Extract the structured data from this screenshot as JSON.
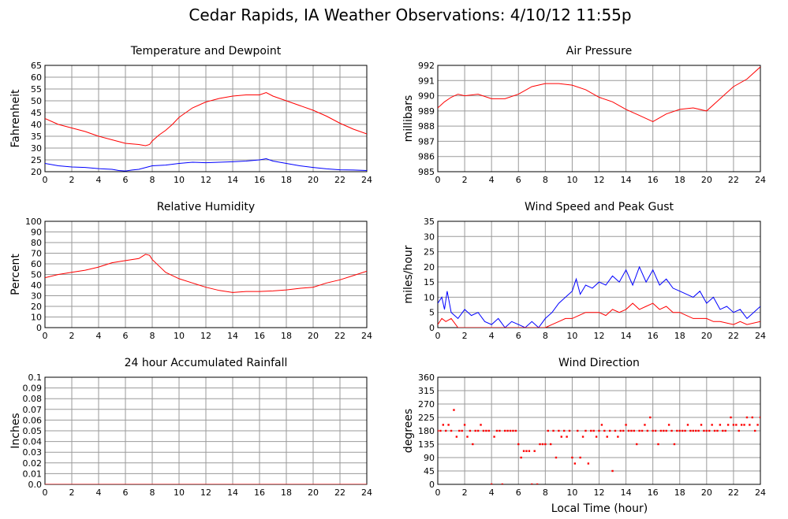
{
  "title": "Cedar Rapids, IA Weather Observations: 4/10/12 11:55p",
  "xlabel_shared": "Local Time (hour)",
  "colors": {
    "red": "#ff0000",
    "blue": "#0000ff",
    "grid": "#9a9a9a"
  },
  "chart_data": [
    {
      "type": "line",
      "title": "Temperature and Dewpoint",
      "ylabel": "Fahrenheit",
      "xlabel": "",
      "xlim": [
        0,
        24
      ],
      "ylim": [
        20,
        65
      ],
      "x_ticks": [
        0,
        2,
        4,
        6,
        8,
        10,
        12,
        14,
        16,
        18,
        20,
        22,
        24
      ],
      "y_ticks": [
        20,
        25,
        30,
        35,
        40,
        45,
        50,
        55,
        60,
        65
      ],
      "grid": true,
      "series": [
        {
          "color": "#ff0000",
          "x": [
            0,
            1,
            2,
            3,
            4,
            5,
            6,
            7,
            7.5,
            7.8,
            8,
            8.5,
            9,
            9.5,
            10,
            10.5,
            11,
            12,
            13,
            14,
            15,
            16,
            16.5,
            17,
            18,
            19,
            20,
            21,
            22,
            23,
            24
          ],
          "y": [
            42.5,
            40,
            38.5,
            37,
            35,
            33.5,
            32,
            31.5,
            31,
            31.5,
            33,
            35.5,
            37.5,
            40,
            43,
            45,
            47,
            49.5,
            51,
            52,
            52.5,
            52.5,
            53.5,
            52,
            50,
            48,
            46,
            43.5,
            40.5,
            38,
            36
          ]
        },
        {
          "color": "#0000ff",
          "x": [
            0,
            1,
            2,
            3,
            4,
            5,
            5.5,
            6,
            6.5,
            7,
            8,
            9,
            10,
            11,
            12,
            13,
            14,
            15,
            16,
            16.5,
            17,
            18,
            19,
            20,
            21,
            22,
            23,
            24
          ],
          "y": [
            23.5,
            22.5,
            22,
            21.8,
            21.3,
            21,
            20.5,
            20.3,
            20.7,
            21,
            22.5,
            22.8,
            23.5,
            24,
            23.8,
            24,
            24.2,
            24.5,
            25,
            25.5,
            24.5,
            23.5,
            22.5,
            21.8,
            21.2,
            20.8,
            20.7,
            20.5
          ]
        }
      ]
    },
    {
      "type": "line",
      "title": "Air Pressure",
      "ylabel": "millibars",
      "xlabel": "",
      "xlim": [
        0,
        24
      ],
      "ylim": [
        985,
        992
      ],
      "x_ticks": [
        0,
        2,
        4,
        6,
        8,
        10,
        12,
        14,
        16,
        18,
        20,
        22,
        24
      ],
      "y_ticks": [
        985,
        986,
        987,
        988,
        989,
        990,
        991,
        992
      ],
      "grid": true,
      "series": [
        {
          "color": "#ff0000",
          "x": [
            0,
            0.5,
            1,
            1.5,
            2,
            3,
            4,
            5,
            6,
            7,
            8,
            9,
            10,
            11,
            12,
            13,
            14,
            15,
            16,
            17,
            18,
            19,
            20,
            21,
            22,
            23,
            24
          ],
          "y": [
            989.2,
            989.6,
            989.9,
            990.1,
            990,
            990.1,
            989.8,
            989.8,
            990.1,
            990.6,
            990.8,
            990.8,
            990.7,
            990.4,
            989.9,
            989.6,
            989.1,
            988.7,
            988.3,
            988.8,
            989.1,
            989.2,
            989,
            989.8,
            990.6,
            991.1,
            991.9
          ]
        }
      ]
    },
    {
      "type": "line",
      "title": "Relative Humidity",
      "ylabel": "Percent",
      "xlabel": "",
      "xlim": [
        0,
        24
      ],
      "ylim": [
        0,
        100
      ],
      "x_ticks": [
        0,
        2,
        4,
        6,
        8,
        10,
        12,
        14,
        16,
        18,
        20,
        22,
        24
      ],
      "y_ticks": [
        0,
        10,
        20,
        30,
        40,
        50,
        60,
        70,
        80,
        90,
        100
      ],
      "grid": true,
      "series": [
        {
          "color": "#ff0000",
          "x": [
            0,
            1,
            2,
            3,
            4,
            5,
            6,
            7,
            7.5,
            7.8,
            8,
            8.5,
            9,
            10,
            11,
            12,
            13,
            14,
            15,
            16,
            17,
            18,
            19,
            20,
            21,
            22,
            23,
            24
          ],
          "y": [
            47,
            50,
            52,
            54,
            57,
            61,
            63,
            65,
            69,
            68,
            64,
            58,
            52,
            46,
            42,
            38,
            35,
            33,
            34,
            34,
            34.5,
            35.5,
            37,
            38,
            42,
            45,
            49,
            53
          ]
        }
      ]
    },
    {
      "type": "line",
      "title": "Wind Speed and Peak Gust",
      "ylabel": "miles/hour",
      "xlabel": "",
      "xlim": [
        0,
        24
      ],
      "ylim": [
        0,
        35
      ],
      "x_ticks": [
        0,
        2,
        4,
        6,
        8,
        10,
        12,
        14,
        16,
        18,
        20,
        22,
        24
      ],
      "y_ticks": [
        0,
        5,
        10,
        15,
        20,
        25,
        30,
        35
      ],
      "grid": true,
      "series": [
        {
          "color": "#0000ff",
          "x": [
            0,
            0.3,
            0.5,
            0.7,
            1,
            1.5,
            2,
            2.5,
            3,
            3.5,
            4,
            4.5,
            5,
            5.5,
            6,
            6.5,
            7,
            7.5,
            8,
            8.5,
            9,
            9.5,
            10,
            10.3,
            10.6,
            11,
            11.5,
            12,
            12.5,
            13,
            13.5,
            14,
            14.5,
            15,
            15.5,
            16,
            16.5,
            17,
            17.5,
            18,
            18.5,
            19,
            19.5,
            20,
            20.5,
            21,
            21.5,
            22,
            22.5,
            23,
            23.5,
            24
          ],
          "y": [
            8,
            10,
            6,
            12,
            5,
            3,
            6,
            4,
            5,
            2,
            1,
            3,
            0,
            2,
            1,
            0,
            2,
            0,
            3,
            5,
            8,
            10,
            12,
            16,
            11,
            14,
            13,
            15,
            14,
            17,
            15,
            19,
            14,
            20,
            15,
            19,
            14,
            16,
            13,
            12,
            11,
            10,
            12,
            8,
            10,
            6,
            7,
            5,
            6,
            3,
            5,
            7
          ]
        },
        {
          "color": "#ff0000",
          "x": [
            0,
            0.3,
            0.6,
            1,
            1.5,
            2,
            3,
            4,
            5,
            6,
            7,
            8,
            8.5,
            9,
            9.5,
            10,
            10.5,
            11,
            12,
            12.5,
            13,
            13.5,
            14,
            14.5,
            15,
            15.5,
            16,
            16.5,
            17,
            17.5,
            18,
            18.5,
            19,
            20,
            20.5,
            21,
            22,
            22.5,
            23,
            24
          ],
          "y": [
            1,
            3,
            2,
            3,
            0,
            0,
            0,
            0,
            0,
            0,
            0,
            0,
            1,
            2,
            3,
            3,
            4,
            5,
            5,
            4,
            6,
            5,
            6,
            8,
            6,
            7,
            8,
            6,
            7,
            5,
            5,
            4,
            3,
            3,
            2,
            2,
            1,
            2,
            1,
            2
          ]
        }
      ]
    },
    {
      "type": "line",
      "title": "24 hour Accumulated Rainfall",
      "ylabel": "Inches",
      "xlabel": "",
      "xlim": [
        0,
        24
      ],
      "ylim": [
        0,
        0.1
      ],
      "x_ticks": [
        0,
        2,
        4,
        6,
        8,
        10,
        12,
        14,
        16,
        18,
        20,
        22,
        24
      ],
      "y_ticks": [
        "0.0",
        "0.01",
        "0.02",
        "0.03",
        "0.04",
        "0.05",
        "0.06",
        "0.07",
        "0.08",
        "0.09",
        "0.1"
      ],
      "grid": true,
      "series": [
        {
          "color": "#ff0000",
          "x": [
            0,
            24
          ],
          "y": [
            0,
            0
          ]
        }
      ]
    },
    {
      "type": "scatter",
      "title": "Wind Direction",
      "ylabel": "degrees",
      "xlabel": "Local Time (hour)",
      "xlim": [
        0,
        24
      ],
      "ylim": [
        0,
        360
      ],
      "x_ticks": [
        0,
        2,
        4,
        6,
        8,
        10,
        12,
        14,
        16,
        18,
        20,
        22,
        24
      ],
      "y_ticks": [
        0,
        45,
        90,
        135,
        180,
        225,
        270,
        315,
        360
      ],
      "grid": true,
      "series": [
        {
          "color": "#ff0000",
          "x": [
            0,
            0.2,
            0.4,
            0.6,
            0.8,
            1,
            1.2,
            1.4,
            1.6,
            1.8,
            2,
            2.2,
            2.4,
            2.6,
            2.8,
            3,
            3.2,
            3.4,
            3.6,
            3.8,
            4,
            4.2,
            4.4,
            4.6,
            4.8,
            5,
            5.2,
            5.4,
            5.6,
            5.8,
            6,
            6.2,
            6.4,
            6.6,
            6.8,
            7,
            7.2,
            7.4,
            7.6,
            7.8,
            8,
            8.2,
            8.4,
            8.6,
            8.8,
            9,
            9.2,
            9.4,
            9.6,
            9.8,
            10,
            10.2,
            10.4,
            10.6,
            10.8,
            11,
            11.2,
            11.4,
            11.6,
            11.8,
            12,
            12.2,
            12.4,
            12.6,
            12.8,
            13,
            13.2,
            13.4,
            13.6,
            13.8,
            14,
            14.2,
            14.4,
            14.6,
            14.8,
            15,
            15.2,
            15.4,
            15.6,
            15.8,
            16,
            16.2,
            16.4,
            16.6,
            16.8,
            17,
            17.2,
            17.4,
            17.6,
            17.8,
            18,
            18.2,
            18.4,
            18.6,
            18.8,
            19,
            19.2,
            19.4,
            19.6,
            19.8,
            20,
            20.2,
            20.4,
            20.6,
            20.8,
            21,
            21.2,
            21.4,
            21.6,
            21.8,
            22,
            22.2,
            22.4,
            22.6,
            22.8,
            23,
            23.2,
            23.4,
            23.6,
            23.8,
            24
          ],
          "y": [
            180,
            180,
            200,
            180,
            200,
            180,
            250,
            160,
            180,
            180,
            200,
            160,
            180,
            135,
            180,
            180,
            200,
            180,
            180,
            180,
            0,
            160,
            180,
            180,
            0,
            180,
            180,
            180,
            180,
            180,
            135,
            90,
            112,
            112,
            112,
            0,
            112,
            0,
            135,
            135,
            135,
            180,
            135,
            180,
            90,
            180,
            160,
            180,
            160,
            180,
            90,
            70,
            180,
            90,
            160,
            180,
            70,
            180,
            180,
            160,
            180,
            200,
            180,
            160,
            180,
            45,
            180,
            160,
            180,
            180,
            200,
            180,
            180,
            180,
            135,
            180,
            180,
            200,
            180,
            225,
            180,
            180,
            135,
            180,
            180,
            180,
            200,
            180,
            135,
            180,
            180,
            180,
            180,
            200,
            180,
            180,
            180,
            180,
            200,
            180,
            180,
            180,
            200,
            180,
            180,
            200,
            180,
            180,
            200,
            225,
            200,
            200,
            180,
            200,
            200,
            225,
            200,
            225,
            180,
            200,
            225
          ]
        }
      ]
    }
  ]
}
